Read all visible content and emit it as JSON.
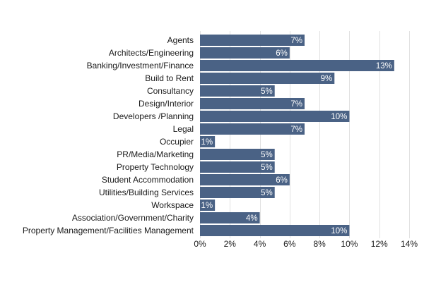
{
  "chart_data": {
    "type": "bar",
    "orientation": "horizontal",
    "categories": [
      "Agents",
      "Architects/Engineering",
      "Banking/Investment/Finance",
      "Build to Rent",
      "Consultancy",
      "Design/Interior",
      "Developers /Planning",
      "Legal",
      "Occupier",
      "PR/Media/Marketing",
      "Property Technology",
      "Student Accommodation",
      "Utilities/Building Services",
      "Workspace",
      "Association/Government/Charity",
      "Property Management/Facilities Management"
    ],
    "values": [
      7,
      6,
      13,
      9,
      5,
      7,
      10,
      7,
      1,
      5,
      5,
      6,
      5,
      1,
      4,
      10
    ],
    "data_labels": [
      "7%",
      "6%",
      "13%",
      "9%",
      "5%",
      "7%",
      "10%",
      "7%",
      "1%",
      "5%",
      "5%",
      "6%",
      "5%",
      "1%",
      "4%",
      "10%"
    ],
    "x_ticks": [
      0,
      2,
      4,
      6,
      8,
      10,
      12,
      14
    ],
    "x_tick_labels": [
      "0%",
      "2%",
      "4%",
      "6%",
      "8%",
      "10%",
      "12%",
      "14%"
    ],
    "xlim": [
      0,
      14
    ],
    "title": "",
    "xlabel": "",
    "ylabel": "",
    "grid": true,
    "colors": {
      "bar": "#4a6285",
      "grid": "#e1e1e1",
      "label_text": "#1a1a1a",
      "data_label_text": "#ffffff"
    }
  }
}
